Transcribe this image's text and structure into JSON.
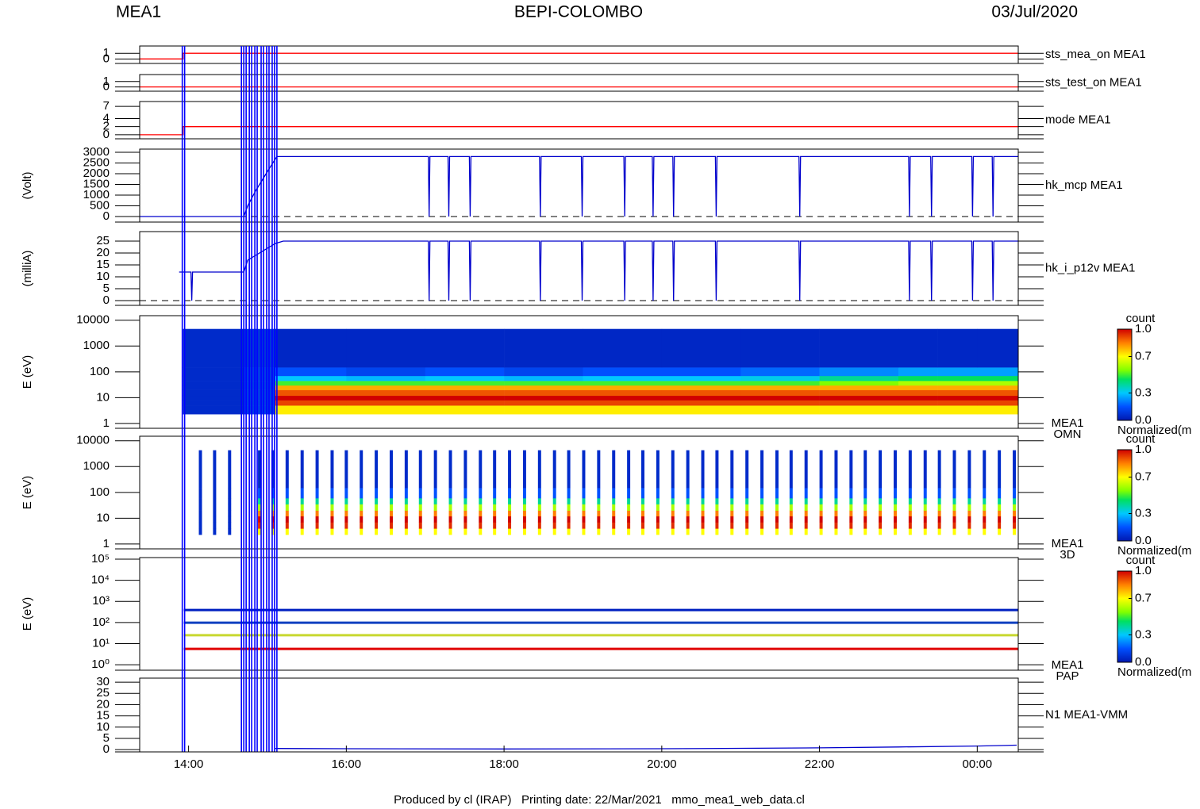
{
  "header": {
    "instrument": "MEA1",
    "mission": "BEPI-COLOMBO",
    "date": "03/Jul/2020"
  },
  "footer": "Produced by cl (IRAP)   Printing date: 22/Mar/2021   mmo_mea1_web_data.cl",
  "time_axis": {
    "xlim": [
      13.38,
      24.52
    ],
    "xticks": [
      {
        "value": 14,
        "label": "14:00"
      },
      {
        "value": 16,
        "label": "16:00"
      },
      {
        "value": 18,
        "label": "18:00"
      },
      {
        "value": 20,
        "label": "20:00"
      },
      {
        "value": 22,
        "label": "22:00"
      },
      {
        "value": 24,
        "label": "00:00"
      }
    ]
  },
  "markers": [
    13.92,
    13.95,
    14.67,
    14.7,
    14.73,
    14.77,
    14.8,
    14.84,
    14.87,
    14.92,
    14.95,
    14.99,
    15.02,
    15.06,
    15.09,
    15.12
  ],
  "marker_color": "#0000ff",
  "chart_data": [
    {
      "type": "line",
      "ylim": [
        -0.8,
        2.3
      ],
      "yticks": [
        0,
        1
      ],
      "series": [
        {
          "name": "sts_mea_on MEA1",
          "color": "#ff0000",
          "x": [
            13.38,
            13.93,
            13.93,
            24.52
          ],
          "values": [
            0,
            0,
            1,
            1
          ]
        }
      ]
    },
    {
      "type": "line",
      "ylim": [
        -0.8,
        2.3
      ],
      "yticks": [
        0,
        1
      ],
      "series": [
        {
          "name": "sts_test_on MEA1",
          "color": "#ff0000",
          "x": [
            13.38,
            24.52
          ],
          "values": [
            0,
            0
          ]
        }
      ]
    },
    {
      "type": "line",
      "ylim": [
        -1,
        8.2
      ],
      "yticks": [
        0,
        2,
        4,
        7
      ],
      "series": [
        {
          "name": "mode MEA1",
          "color": "#ff0000",
          "x": [
            13.38,
            13.93,
            13.93,
            24.52
          ],
          "values": [
            0,
            0,
            2,
            2
          ]
        }
      ]
    },
    {
      "type": "line",
      "ylabel": "(Volt)",
      "ylim": [
        -260,
        3150
      ],
      "yticks": [
        0,
        500,
        1000,
        1500,
        2000,
        2500,
        3000
      ],
      "baseline": 0,
      "series": [
        {
          "name": "hk_mcp MEA1",
          "color": "#0000cc",
          "x": [
            13.38,
            14.7,
            14.75,
            14.85,
            14.95,
            15.05,
            15.12,
            17.04,
            17.05,
            17.06,
            17.29,
            17.3,
            17.31,
            17.56,
            17.57,
            17.58,
            18.45,
            18.46,
            18.47,
            18.98,
            18.99,
            19.0,
            19.52,
            19.53,
            19.54,
            19.88,
            19.89,
            19.9,
            20.14,
            20.15,
            20.16,
            20.68,
            20.69,
            20.7,
            21.74,
            21.75,
            21.76,
            23.13,
            23.14,
            23.15,
            23.41,
            23.42,
            23.43,
            23.93,
            23.94,
            23.95,
            24.19,
            24.2,
            24.21,
            24.52
          ],
          "values": [
            0,
            0,
            500,
            1200,
            1800,
            2400,
            2800,
            2800,
            0,
            2800,
            2800,
            0,
            2800,
            2800,
            0,
            2800,
            2800,
            0,
            2800,
            2800,
            0,
            2800,
            2800,
            0,
            2800,
            2800,
            0,
            2800,
            2800,
            0,
            2800,
            2800,
            0,
            2800,
            2800,
            0,
            2800,
            2800,
            0,
            2800,
            2800,
            0,
            2800,
            2800,
            0,
            2800,
            2800,
            0,
            2800,
            2800
          ]
        }
      ]
    },
    {
      "type": "line",
      "ylabel": "(milliA)",
      "ylim": [
        -2,
        29
      ],
      "yticks": [
        0,
        5,
        10,
        15,
        20,
        25
      ],
      "baseline": 0,
      "series": [
        {
          "name": "hk_i_p12v MEA1",
          "color": "#0000cc",
          "x": [
            13.88,
            14.03,
            14.04,
            14.05,
            14.7,
            14.75,
            14.9,
            15.1,
            15.2,
            17.04,
            17.05,
            17.06,
            17.29,
            17.3,
            17.31,
            17.56,
            17.57,
            17.58,
            18.45,
            18.46,
            18.47,
            18.98,
            18.99,
            19.0,
            19.52,
            19.53,
            19.54,
            19.88,
            19.89,
            19.9,
            20.14,
            20.15,
            20.16,
            20.68,
            20.69,
            20.7,
            21.74,
            21.75,
            21.76,
            23.13,
            23.14,
            23.15,
            23.41,
            23.42,
            23.43,
            23.93,
            23.94,
            23.95,
            24.19,
            24.2,
            24.21,
            24.52
          ],
          "values": [
            12,
            12,
            0,
            12,
            12,
            17,
            20,
            24,
            25,
            25,
            0,
            25,
            25,
            0,
            25,
            25,
            0,
            25,
            25,
            0,
            25,
            25,
            0,
            25,
            25,
            0,
            25,
            25,
            0,
            25,
            25,
            0,
            25,
            25,
            0,
            25,
            25,
            0,
            25,
            25,
            0,
            25,
            25,
            0,
            25,
            25,
            0,
            25,
            25,
            0,
            25,
            25
          ]
        }
      ]
    },
    {
      "type": "spectrogram",
      "ylabel": "E (eV)",
      "log": true,
      "ylim": [
        0.65,
        15000
      ],
      "yticks": [
        1,
        10,
        100,
        1000,
        10000
      ],
      "label_lines": [
        "MEA1",
        "OMN"
      ],
      "colormap": "jet",
      "x_edges": [
        13.93,
        14.7,
        15.1,
        16,
        17,
        18,
        19,
        20,
        21,
        22,
        23,
        23.5,
        24,
        24.52
      ],
      "energy_edges": [
        2.3,
        5,
        8,
        12,
        20,
        30,
        45,
        70,
        150,
        4600
      ],
      "z": [
        [
          0.05,
          0.1,
          0.72,
          0.72,
          0.72,
          0.72,
          0.72,
          0.72,
          0.72,
          0.72,
          0.72,
          0.72,
          0.72
        ],
        [
          0.05,
          0.1,
          0.92,
          0.92,
          0.92,
          0.92,
          0.92,
          0.92,
          0.92,
          0.92,
          0.92,
          0.92,
          0.92
        ],
        [
          0.05,
          0.1,
          1.0,
          1.0,
          1.0,
          1.0,
          1.0,
          1.0,
          1.0,
          1.0,
          1.0,
          1.0,
          1.0
        ],
        [
          0.05,
          0.1,
          0.9,
          0.9,
          0.9,
          0.9,
          0.9,
          0.9,
          0.9,
          0.9,
          0.9,
          0.9,
          0.9
        ],
        [
          0.05,
          0.1,
          0.8,
          0.8,
          0.8,
          0.8,
          0.8,
          0.8,
          0.8,
          0.8,
          0.8,
          0.8,
          0.8
        ],
        [
          0.05,
          0.1,
          0.5,
          0.5,
          0.5,
          0.5,
          0.5,
          0.5,
          0.5,
          0.55,
          0.6,
          0.6,
          0.6
        ],
        [
          0.05,
          0.1,
          0.3,
          0.28,
          0.3,
          0.28,
          0.3,
          0.3,
          0.32,
          0.4,
          0.45,
          0.45,
          0.45
        ],
        [
          0.05,
          0.1,
          0.15,
          0.12,
          0.15,
          0.12,
          0.15,
          0.15,
          0.18,
          0.22,
          0.25,
          0.25,
          0.25
        ],
        [
          0.05,
          0.08,
          0.04,
          0.04,
          0.04,
          0.04,
          0.04,
          0.04,
          0.04,
          0.04,
          0.04,
          0.04,
          0.04
        ]
      ],
      "colorbar": {
        "title": "count",
        "label": "Normalized(m",
        "ticks": [
          {
            "value": 0,
            "label": "0.0"
          },
          {
            "value": 0.3,
            "label": "0.3"
          },
          {
            "value": 0.7,
            "label": "0.7"
          },
          {
            "value": 1,
            "label": "1.0"
          }
        ]
      }
    },
    {
      "type": "spectrogram-bars",
      "ylabel": "E (eV)",
      "log": true,
      "ylim": [
        0.65,
        15000
      ],
      "yticks": [
        1,
        10,
        100,
        1000,
        10000
      ],
      "label_lines": [
        "MEA1",
        "3D"
      ],
      "colormap": "jet",
      "bar_width": 0.04,
      "energy_edges": [
        2.3,
        4,
        7,
        12,
        20,
        35,
        60,
        150,
        4300
      ],
      "series": [
        {
          "x": [
            14.15,
            14.33,
            14.52
          ],
          "z": [
            0.05,
            0.05,
            0.05,
            0.05,
            0.05,
            0.05,
            0.05,
            0.05
          ]
        },
        {
          "x": [
            14.9,
            15.07,
            15.25,
            15.44,
            15.63,
            15.82,
            16.0,
            16.19,
            16.38,
            16.57,
            16.76,
            16.94,
            17.13,
            17.32,
            17.51,
            17.7,
            17.88,
            18.07,
            18.26,
            18.45,
            18.64,
            18.82,
            19.01,
            19.2,
            19.39,
            19.58,
            19.76,
            19.95,
            20.14,
            20.33,
            20.52,
            20.7,
            20.89,
            21.08,
            21.27,
            21.46,
            21.64,
            21.83,
            22.02,
            22.21,
            22.4,
            22.58,
            22.77,
            22.96,
            23.15,
            23.34,
            23.52,
            23.71,
            23.9,
            24.09,
            24.28,
            24.47
          ],
          "z": [
            0.7,
            0.95,
            1.0,
            0.85,
            0.6,
            0.4,
            0.15,
            0.05
          ]
        }
      ],
      "colorbar": {
        "title": "count",
        "label": "Normalized(m",
        "ticks": [
          {
            "value": 0,
            "label": "0.0"
          },
          {
            "value": 0.3,
            "label": "0.3"
          },
          {
            "value": 0.7,
            "label": "0.7"
          },
          {
            "value": 1,
            "label": "1.0"
          }
        ]
      }
    },
    {
      "type": "hlines",
      "ylabel": "E (eV)",
      "log": true,
      "ylim": [
        0.55,
        119000
      ],
      "yticks": [
        {
          "value": 1,
          "label": "10⁰"
        },
        {
          "value": 10,
          "label": "10¹"
        },
        {
          "value": 100,
          "label": "10²"
        },
        {
          "value": 1000,
          "label": "10³"
        },
        {
          "value": 10000,
          "label": "10⁴"
        },
        {
          "value": 100000,
          "label": "10⁵"
        }
      ],
      "label_lines": [
        "MEA1",
        "PAP"
      ],
      "colormap": "jet",
      "xrange": [
        13.94,
        24.52
      ],
      "levels": [
        5.6,
        25,
        98,
        390
      ],
      "level_colors": [
        "#e00000",
        "#c8d830",
        "#1040c0",
        "#0020c0"
      ],
      "colorbar": {
        "title": "count",
        "label": "Normalized(m",
        "ticks": [
          {
            "value": 0,
            "label": "0.0"
          },
          {
            "value": 0.3,
            "label": "0.3"
          },
          {
            "value": 0.7,
            "label": "0.7"
          },
          {
            "value": 1,
            "label": "1.0"
          }
        ]
      }
    },
    {
      "type": "line",
      "ylim": [
        -1,
        31.8
      ],
      "yticks": [
        0,
        5,
        10,
        15,
        20,
        25,
        30
      ],
      "series": [
        {
          "name": "N1 MEA1-VMM",
          "color": "#0000cc",
          "x": [
            15.1,
            16,
            18,
            20,
            21,
            22,
            23,
            24,
            24.5
          ],
          "values": [
            0.5,
            0.4,
            0.3,
            0.4,
            0.6,
            0.8,
            1.2,
            1.6,
            2
          ]
        }
      ]
    }
  ]
}
